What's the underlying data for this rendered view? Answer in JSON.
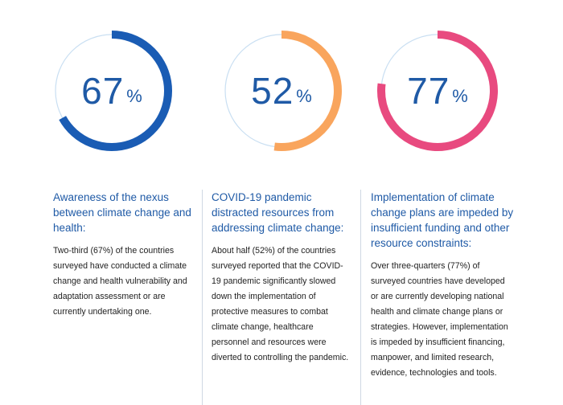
{
  "chart_data": [
    {
      "type": "pie",
      "title": "Awareness of the nexus between climate change and health:",
      "value": 67,
      "unit": "%",
      "color": "#1a5cb4",
      "track_color": "#c9dff2"
    },
    {
      "type": "pie",
      "title": "COVID-19 pandemic distracted resources from addressing climate change:",
      "value": 52,
      "unit": "%",
      "color": "#f9a55d",
      "track_color": "#c9dff2"
    },
    {
      "type": "pie",
      "title": "Implementation of climate change plans are impeded by insufficient funding and other resource constraints:",
      "value": 77,
      "unit": "%",
      "color": "#e84a7f",
      "track_color": "#c9dff2"
    }
  ],
  "columns": [
    {
      "title": "Awareness of the nexus between climate change and health:",
      "body": "Two-third (67%) of the countries surveyed have conducted a climate change and health vulnerability and adaptation assessment or are currently undertaking one."
    },
    {
      "title": "COVID-19 pandemic distracted resources from addressing climate change:",
      "body": "About half (52%) of the countries surveyed reported that the COVID-19 pandemic significantly slowed down the implementation of protective measures to combat climate change, healthcare personnel and resources were diverted to controlling the pandemic."
    },
    {
      "title": "Implementation of climate change plans are impeded by insufficient funding and other resource constraints:",
      "body": "Over three-quarters (77%) of surveyed countries have developed or are currently developing national health and climate change plans or strategies. However, implementation is impeded by insufficient financing, manpower, and limited research, evidence, technologies and tools."
    }
  ]
}
